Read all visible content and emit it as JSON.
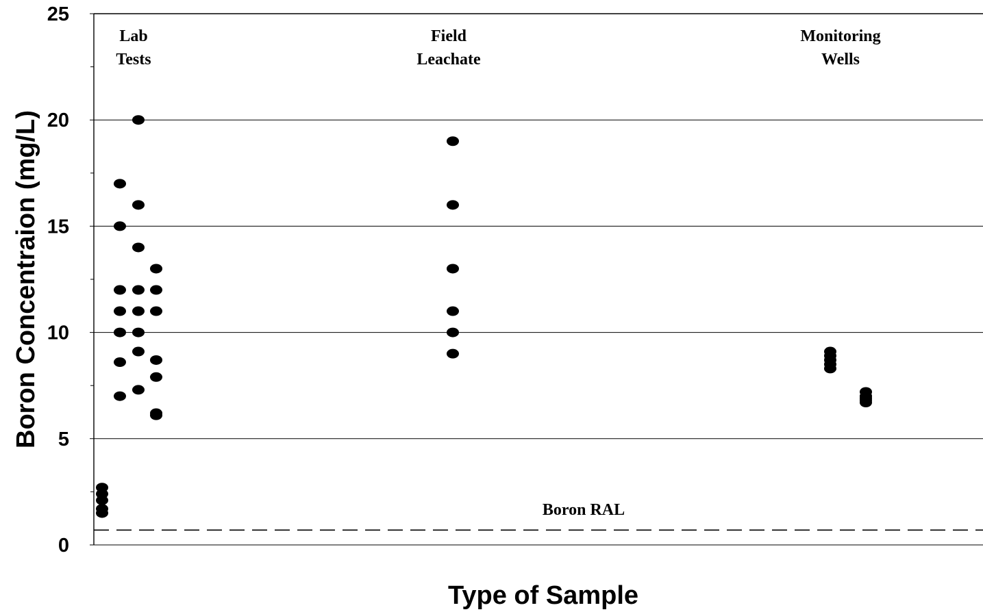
{
  "chart_data": {
    "type": "scatter",
    "xlabel": "Type of Sample",
    "ylabel": "Boron Concentraion (mg/L)",
    "ylim": [
      0,
      25
    ],
    "yticks": [
      "0",
      "5",
      "10",
      "15",
      "20",
      "25"
    ],
    "grid": "horizontal",
    "groups": [
      {
        "label_lines": [
          "Lab",
          "Tests"
        ]
      },
      {
        "label_lines": [
          "Field",
          "Leachate"
        ]
      },
      {
        "label_lines": [
          "Monitoring",
          "Wells"
        ]
      }
    ],
    "reference_line": {
      "label": "Boron RAL",
      "y": 0.7,
      "style": "dashed"
    },
    "series": [
      {
        "group": "Lab Tests",
        "columns": [
          {
            "column": 1,
            "y": [
              2.7,
              2.4,
              2.1,
              1.7,
              1.5
            ]
          },
          {
            "column": 2,
            "y": [
              17,
              15,
              12,
              11,
              10,
              8.6,
              7
            ]
          },
          {
            "column": 3,
            "y": [
              20,
              16,
              14,
              12,
              11,
              10,
              9.1,
              7.3
            ]
          },
          {
            "column": 4,
            "y": [
              13,
              12,
              11,
              8.7,
              7.9,
              6.2,
              6.1
            ]
          }
        ]
      },
      {
        "group": "Field Leachate",
        "columns": [
          {
            "column": 1,
            "y": [
              19,
              16,
              13,
              11,
              10,
              9
            ]
          }
        ]
      },
      {
        "group": "Monitoring Wells",
        "columns": [
          {
            "column": 1,
            "y": [
              9.1,
              8.9,
              8.7,
              8.5,
              8.3
            ]
          },
          {
            "column": 2,
            "y": [
              7.2,
              7.0,
              6.9,
              6.8,
              6.7
            ]
          }
        ]
      }
    ]
  }
}
